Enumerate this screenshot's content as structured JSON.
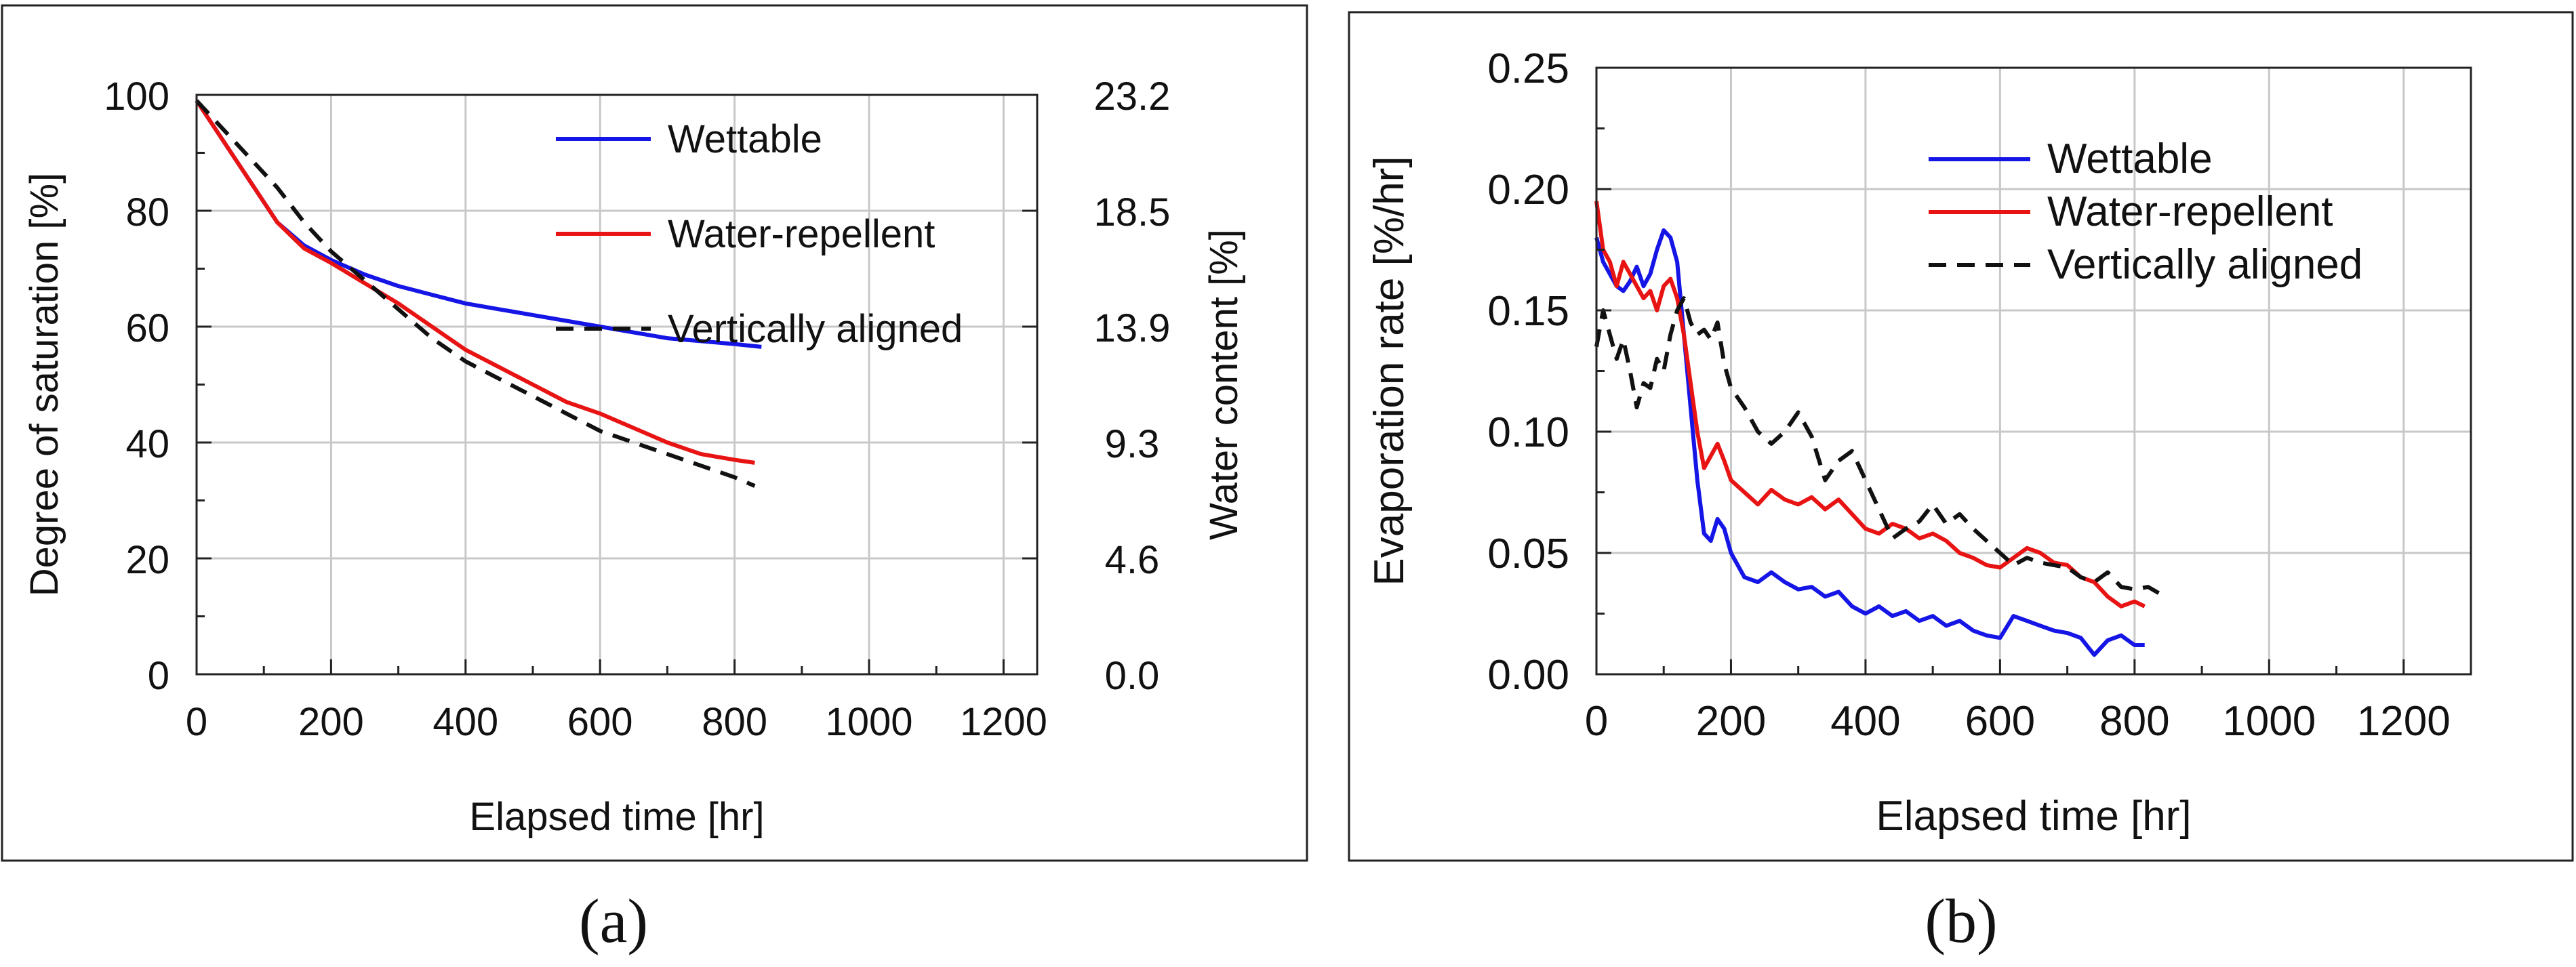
{
  "panel_captions": [
    "(a)",
    "(b)"
  ],
  "chart_data": [
    {
      "type": "line",
      "panel": "a",
      "xlabel": "Elapsed time [hr]",
      "ylabel": "Degree of saturation [%]",
      "y2label": "Water content [%]",
      "xlim": [
        0,
        1250
      ],
      "ylim": [
        0,
        100
      ],
      "y2lim": [
        0,
        23.2
      ],
      "xticks": [
        0,
        200,
        400,
        600,
        800,
        1000,
        1200
      ],
      "yticks": [
        0,
        20,
        40,
        60,
        80,
        100
      ],
      "y2ticks": [
        "0.0",
        "4.6",
        "9.3",
        "13.9",
        "18.5",
        "23.2"
      ],
      "grid": true,
      "legend_position": "top-right",
      "series": [
        {
          "name": "Wettable",
          "color": "#1515e6",
          "style": "solid",
          "x": [
            0,
            40,
            80,
            120,
            160,
            200,
            250,
            300,
            350,
            400,
            450,
            500,
            550,
            600,
            650,
            700,
            750,
            800,
            840
          ],
          "y": [
            99,
            92,
            85,
            78,
            74,
            71.5,
            69,
            67,
            65.5,
            64,
            63,
            62,
            61,
            60,
            59,
            58,
            57.5,
            57,
            56.5
          ]
        },
        {
          "name": "Water-repellent",
          "color": "#e81414",
          "style": "solid",
          "x": [
            0,
            40,
            80,
            120,
            160,
            200,
            250,
            300,
            350,
            400,
            450,
            500,
            550,
            600,
            650,
            700,
            750,
            800,
            830
          ],
          "y": [
            99,
            92,
            85,
            78,
            73.5,
            71,
            67.5,
            64,
            60,
            56,
            53,
            50,
            47,
            45,
            42.5,
            40,
            38,
            37,
            36.5
          ]
        },
        {
          "name": "Vertically aligned",
          "color": "#111111",
          "style": "dashed",
          "x": [
            0,
            40,
            80,
            120,
            160,
            200,
            250,
            300,
            350,
            400,
            450,
            500,
            550,
            600,
            650,
            700,
            750,
            800,
            830
          ],
          "y": [
            99,
            94,
            89,
            84,
            78,
            73,
            68,
            63,
            58,
            54,
            51,
            48,
            45,
            42,
            40,
            38,
            36,
            34,
            32.5
          ]
        }
      ]
    },
    {
      "type": "line",
      "panel": "b",
      "xlabel": "Elapsed time [hr]",
      "ylabel": "Evaporation rate [%/hr]",
      "xlim": [
        0,
        1300
      ],
      "ylim": [
        0,
        0.25
      ],
      "xticks": [
        0,
        200,
        400,
        600,
        800,
        1000,
        1200
      ],
      "yticks": [
        "0.00",
        "0.05",
        "0.10",
        "0.15",
        "0.20",
        "0.25"
      ],
      "grid": true,
      "legend_position": "top-right",
      "series": [
        {
          "name": "Wettable",
          "color": "#1515e6",
          "style": "solid",
          "x": [
            0,
            10,
            20,
            30,
            40,
            50,
            60,
            70,
            80,
            90,
            100,
            110,
            120,
            130,
            140,
            150,
            160,
            170,
            180,
            190,
            200,
            220,
            240,
            260,
            280,
            300,
            320,
            340,
            360,
            380,
            400,
            420,
            440,
            460,
            480,
            500,
            520,
            540,
            560,
            580,
            600,
            620,
            640,
            660,
            680,
            700,
            720,
            740,
            760,
            780,
            800,
            815
          ],
          "y": [
            0.18,
            0.17,
            0.165,
            0.16,
            0.158,
            0.162,
            0.168,
            0.16,
            0.165,
            0.175,
            0.183,
            0.18,
            0.17,
            0.14,
            0.11,
            0.08,
            0.058,
            0.055,
            0.064,
            0.06,
            0.05,
            0.04,
            0.038,
            0.042,
            0.038,
            0.035,
            0.036,
            0.032,
            0.034,
            0.028,
            0.025,
            0.028,
            0.024,
            0.026,
            0.022,
            0.024,
            0.02,
            0.022,
            0.018,
            0.016,
            0.015,
            0.024,
            0.022,
            0.02,
            0.018,
            0.017,
            0.015,
            0.008,
            0.014,
            0.016,
            0.012,
            0.012
          ]
        },
        {
          "name": "Water-repellent",
          "color": "#e81414",
          "style": "solid",
          "x": [
            0,
            10,
            20,
            30,
            40,
            50,
            60,
            70,
            80,
            90,
            100,
            110,
            120,
            130,
            140,
            150,
            160,
            170,
            180,
            190,
            200,
            220,
            240,
            260,
            280,
            300,
            320,
            340,
            360,
            380,
            400,
            420,
            440,
            460,
            480,
            500,
            520,
            540,
            560,
            580,
            600,
            620,
            640,
            660,
            680,
            700,
            720,
            740,
            760,
            780,
            800,
            815
          ],
          "y": [
            0.195,
            0.175,
            0.17,
            0.16,
            0.17,
            0.165,
            0.16,
            0.155,
            0.158,
            0.15,
            0.16,
            0.163,
            0.155,
            0.14,
            0.12,
            0.1,
            0.085,
            0.09,
            0.095,
            0.088,
            0.08,
            0.075,
            0.07,
            0.076,
            0.072,
            0.07,
            0.073,
            0.068,
            0.072,
            0.066,
            0.06,
            0.058,
            0.062,
            0.06,
            0.056,
            0.058,
            0.055,
            0.05,
            0.048,
            0.045,
            0.044,
            0.048,
            0.052,
            0.05,
            0.046,
            0.045,
            0.04,
            0.038,
            0.032,
            0.028,
            0.03,
            0.028
          ]
        },
        {
          "name": "Vertically aligned",
          "color": "#111111",
          "style": "dashed",
          "x": [
            0,
            10,
            20,
            30,
            40,
            50,
            60,
            70,
            80,
            90,
            100,
            110,
            120,
            130,
            140,
            150,
            160,
            170,
            180,
            190,
            200,
            220,
            240,
            260,
            280,
            300,
            320,
            340,
            360,
            380,
            400,
            420,
            440,
            460,
            480,
            500,
            520,
            540,
            560,
            580,
            600,
            620,
            640,
            660,
            680,
            700,
            720,
            740,
            760,
            780,
            800,
            820,
            845
          ],
          "y": [
            0.135,
            0.15,
            0.14,
            0.13,
            0.138,
            0.125,
            0.11,
            0.12,
            0.118,
            0.13,
            0.125,
            0.14,
            0.15,
            0.155,
            0.145,
            0.14,
            0.142,
            0.138,
            0.145,
            0.128,
            0.118,
            0.11,
            0.1,
            0.095,
            0.1,
            0.108,
            0.098,
            0.08,
            0.088,
            0.092,
            0.08,
            0.068,
            0.056,
            0.06,
            0.063,
            0.07,
            0.062,
            0.066,
            0.06,
            0.055,
            0.05,
            0.045,
            0.048,
            0.046,
            0.045,
            0.044,
            0.04,
            0.038,
            0.042,
            0.036,
            0.035,
            0.036,
            0.032
          ]
        }
      ]
    }
  ]
}
